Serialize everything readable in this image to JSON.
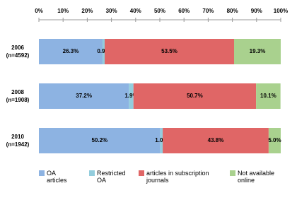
{
  "chart_data": {
    "type": "stacked-bar-horizontal",
    "categories": [
      "2006\n(n=4592)",
      "2008\n(n=1908)",
      "2010\n(n=1942)"
    ],
    "series": [
      {
        "name": "OA\narticles",
        "color": "#8db3e2",
        "values": [
          26.3,
          37.2,
          50.2
        ],
        "value_labels": [
          "26.3%",
          "37.2%",
          "50.2%"
        ]
      },
      {
        "name": "Restricted\nOA",
        "color": "#93cddd",
        "values": [
          0.9,
          1.9,
          1.0
        ],
        "value_labels": [
          "0.9%",
          "1.9%",
          "1.0%"
        ]
      },
      {
        "name": "articles in subscription\njournals",
        "color": "#e06666",
        "values": [
          53.5,
          50.7,
          43.8
        ],
        "value_labels": [
          "53.5%",
          "50.7%",
          "43.8%"
        ]
      },
      {
        "name": "Not available\nonline",
        "color": "#a9d18e",
        "values": [
          19.3,
          10.1,
          5.0
        ],
        "value_labels": [
          "19.3%",
          "10.1%",
          "5.0%"
        ]
      }
    ],
    "xlim": [
      0,
      100
    ],
    "xticks": [
      {
        "value": 0,
        "label": "0%"
      },
      {
        "value": 10,
        "label": "10%"
      },
      {
        "value": 20,
        "label": "20%"
      },
      {
        "value": 30,
        "label": "30%"
      },
      {
        "value": 40,
        "label": "40%"
      },
      {
        "value": 50,
        "label": "50%"
      },
      {
        "value": 60,
        "label": "60%"
      },
      {
        "value": 70,
        "label": "70%"
      },
      {
        "value": 80,
        "label": "80%"
      },
      {
        "value": 90,
        "label": "90%"
      },
      {
        "value": 100,
        "label": "100%"
      }
    ],
    "legend": "bottom"
  }
}
